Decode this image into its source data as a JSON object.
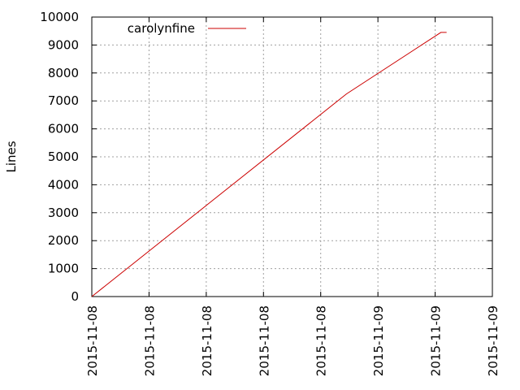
{
  "chart_data": {
    "type": "line",
    "title": "",
    "xlabel": "",
    "ylabel": "Lines",
    "ylim": [
      0,
      10000
    ],
    "yticks": [
      0,
      1000,
      2000,
      3000,
      4000,
      5000,
      6000,
      7000,
      8000,
      9000,
      10000
    ],
    "xticks": [
      "2015-11-08",
      "2015-11-08",
      "2015-11-08",
      "2015-11-08",
      "2015-11-08",
      "2015-11-09",
      "2015-11-09",
      "2015-11-09"
    ],
    "grid": true,
    "legend_position": "top-left",
    "series": [
      {
        "name": "carolynfine",
        "color": "#cc0000",
        "x": [
          0,
          4.45,
          6.1,
          6.2
        ],
        "y": [
          0,
          7250,
          9450,
          9450
        ]
      }
    ]
  }
}
